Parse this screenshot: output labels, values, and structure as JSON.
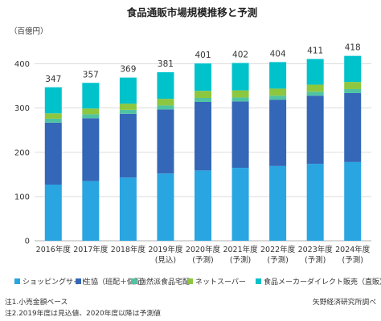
{
  "chart_data": {
    "type": "bar",
    "stacked": true,
    "title": "食品通販市場規模推移と予測",
    "unit_label": "（百億円）",
    "ylim": [
      0,
      450
    ],
    "yticks": [
      0,
      100,
      200,
      300,
      400
    ],
    "grid": true,
    "legend_position": "bottom",
    "categories": [
      [
        "2016年度"
      ],
      [
        "2017年度"
      ],
      [
        "2018年度"
      ],
      [
        "2019年度",
        "(見込)"
      ],
      [
        "2020年度",
        "(予測)"
      ],
      [
        "2021年度",
        "(予測)"
      ],
      [
        "2022年度",
        "(予測)"
      ],
      [
        "2023年度",
        "(予測)"
      ],
      [
        "2024年度",
        "(予測)"
      ]
    ],
    "totals": [
      347,
      357,
      369,
      381,
      401,
      402,
      404,
      411,
      418
    ],
    "series": [
      {
        "name": "ショッピングサイト",
        "color": "#29a5e1",
        "values": [
          127,
          135,
          143,
          152,
          159,
          165,
          169,
          174,
          178
        ]
      },
      {
        "name": "生協（班配＋個配）",
        "color": "#3467b7",
        "values": [
          140,
          142,
          144,
          145,
          155,
          150,
          150,
          154,
          156
        ]
      },
      {
        "name": "自然派食品宅配",
        "color": "#4fc4a2",
        "values": [
          9,
          9,
          9,
          9,
          9,
          9,
          9,
          9,
          9
        ]
      },
      {
        "name": "ネットスーパー",
        "color": "#8dc63f",
        "values": [
          12,
          13,
          14,
          15,
          16,
          16,
          16,
          16,
          16
        ]
      },
      {
        "name": "食品メーカーダイレクト販売（直販）",
        "color": "#00c2cb",
        "values": [
          59,
          58,
          59,
          60,
          62,
          62,
          60,
          58,
          59
        ]
      }
    ]
  },
  "notes": [
    "注1.小売金額ベース",
    "注2.2019年度は見込値、2020年度以降は予測値"
  ],
  "source": "矢野経済研究所調べ"
}
